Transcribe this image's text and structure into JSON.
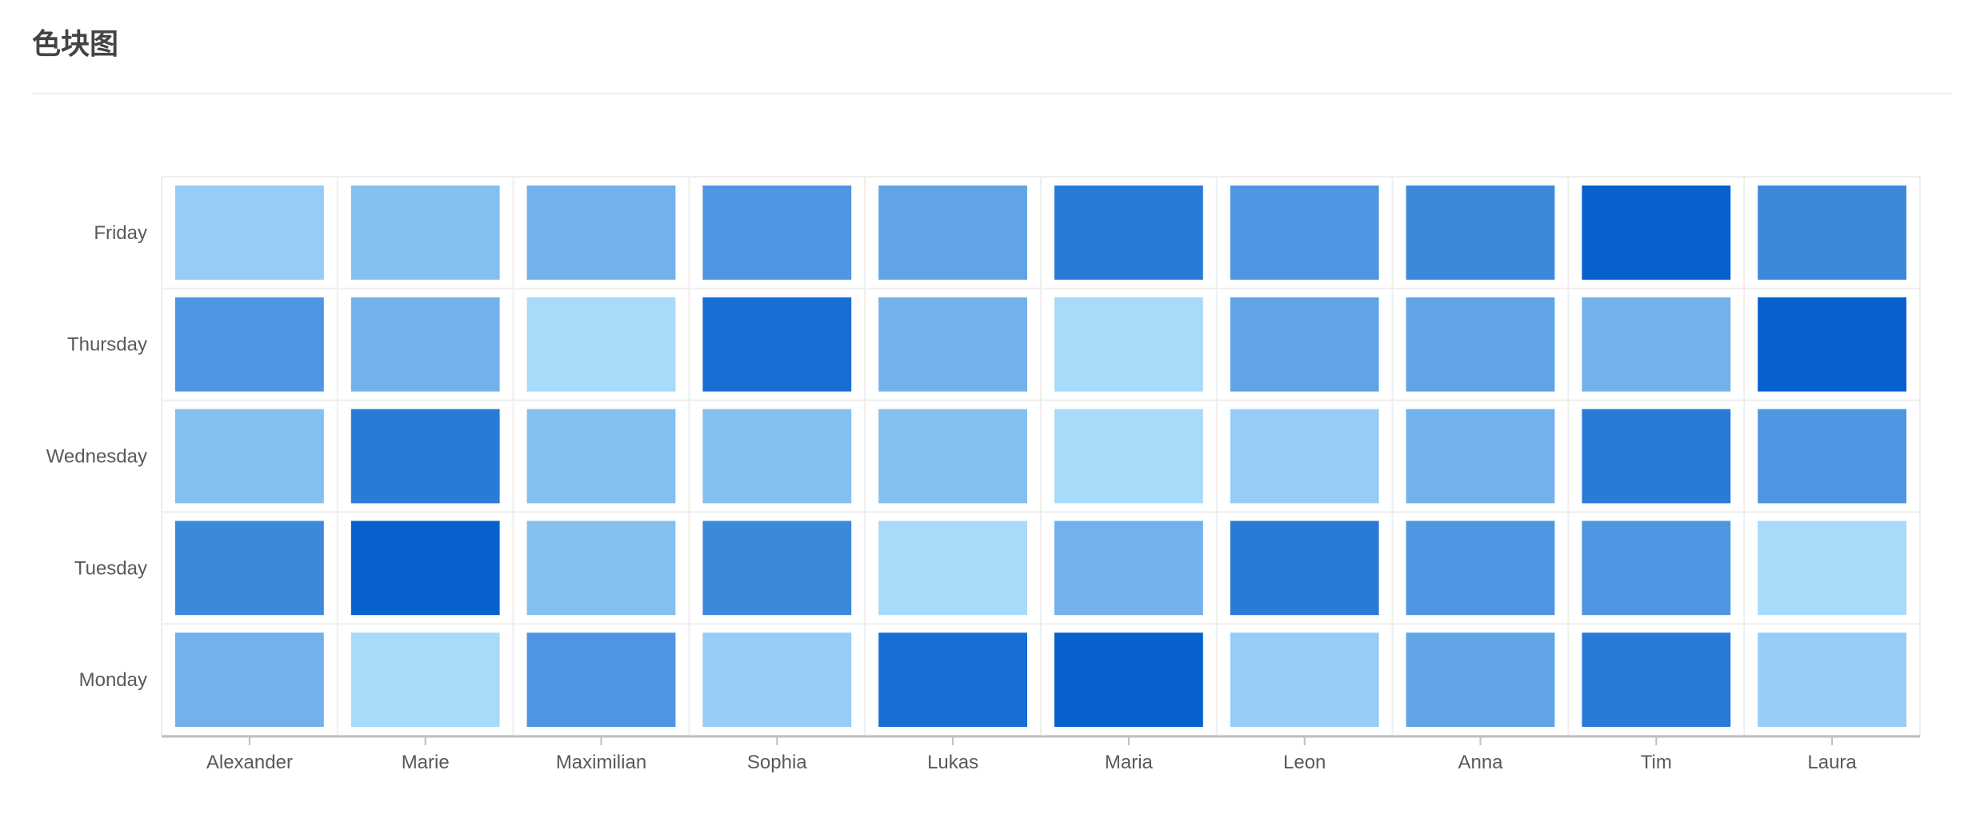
{
  "header": {
    "title": "色块图"
  },
  "chart_data": {
    "type": "heatmap",
    "title": "",
    "xlabel": "",
    "ylabel": "",
    "x": [
      "Alexander",
      "Marie",
      "Maximilian",
      "Sophia",
      "Lukas",
      "Maria",
      "Leon",
      "Anna",
      "Tim",
      "Laura"
    ],
    "y": [
      "Monday",
      "Tuesday",
      "Wednesday",
      "Thursday",
      "Friday"
    ],
    "values": [
      [
        40,
        10,
        60,
        20,
        90,
        100,
        20,
        50,
        80,
        20
      ],
      [
        70,
        100,
        30,
        70,
        10,
        40,
        80,
        60,
        60,
        10
      ],
      [
        30,
        80,
        30,
        30,
        30,
        10,
        20,
        40,
        80,
        60
      ],
      [
        60,
        40,
        10,
        90,
        40,
        10,
        50,
        50,
        40,
        100
      ],
      [
        20,
        30,
        40,
        60,
        50,
        80,
        60,
        70,
        100,
        70
      ]
    ],
    "color_scale": {
      "min_value": 0,
      "max_value": 100,
      "min_color": "#BAE7FF",
      "max_color": "#0660CD"
    },
    "legend": false,
    "grid": true
  }
}
